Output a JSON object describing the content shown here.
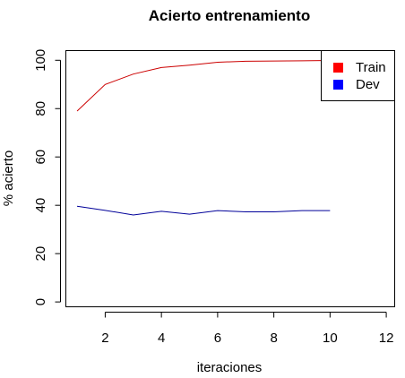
{
  "chart_data": {
    "type": "line",
    "title": "Acierto entrenamiento",
    "xlabel": "iteraciones",
    "ylabel": "% acierto",
    "xlim": [
      0.6,
      12.3
    ],
    "ylim": [
      -2,
      104
    ],
    "x_ticks": [
      2,
      4,
      6,
      8,
      10,
      12
    ],
    "y_ticks": [
      0,
      20,
      40,
      60,
      80,
      100
    ],
    "grid": false,
    "legend_position": "top-right",
    "series": [
      {
        "name": "Train",
        "color": "#ff0000",
        "line_color": "#cc0000",
        "x": [
          1,
          2,
          3,
          4,
          5,
          6,
          7,
          8,
          9,
          10
        ],
        "y": [
          79,
          90,
          94.3,
          97,
          98,
          99.2,
          99.6,
          99.7,
          99.8,
          99.9
        ]
      },
      {
        "name": "Dev",
        "color": "#0000ff",
        "line_color": "#000099",
        "x": [
          1,
          2,
          3,
          4,
          5,
          6,
          7,
          8,
          9,
          10
        ],
        "y": [
          39.6,
          37.9,
          36,
          37.5,
          36.3,
          37.8,
          37.3,
          37.3,
          37.8,
          37.8
        ]
      }
    ]
  }
}
